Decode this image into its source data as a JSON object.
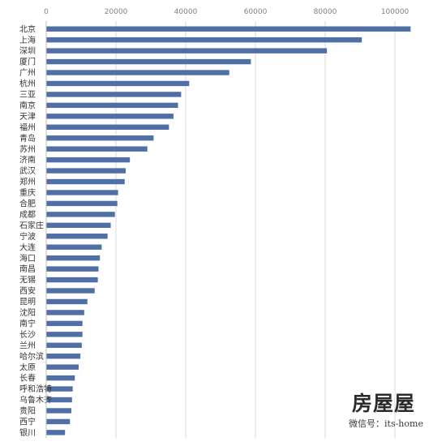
{
  "chart_data": {
    "type": "bar",
    "orientation": "horizontal",
    "title": "",
    "xlabel": "",
    "ylabel": "",
    "xlim": [
      0,
      100000
    ],
    "x_ticks": [
      "0",
      "20000",
      "40000",
      "60000",
      "80000",
      "100000"
    ],
    "grid": true,
    "bar_color": "#4f6fa5",
    "categories": [
      "北京",
      "上海",
      "深圳",
      "厦门",
      "广州",
      "杭州",
      "三亚",
      "南京",
      "天津",
      "福州",
      "青岛",
      "苏州",
      "济南",
      "武汉",
      "郑州",
      "重庆",
      "合肥",
      "成都",
      "石家庄",
      "宁波",
      "大连",
      "海口",
      "南昌",
      "无锡",
      "西安",
      "昆明",
      "沈阳",
      "南宁",
      "长沙",
      "兰州",
      "哈尔滨",
      "太原",
      "长春",
      "呼和浩特",
      "乌鲁木齐",
      "贵阳",
      "西宁",
      "银川"
    ],
    "values": [
      104500,
      90500,
      80500,
      58700,
      52500,
      41000,
      38700,
      37800,
      36500,
      35200,
      30800,
      29000,
      24000,
      22800,
      22500,
      20600,
      20400,
      19700,
      18500,
      17600,
      15900,
      15400,
      15000,
      14800,
      13900,
      11800,
      10900,
      10400,
      10400,
      10200,
      9800,
      9300,
      8200,
      7600,
      7400,
      7200,
      6800,
      5400
    ]
  },
  "watermark": {
    "brand": "房屋屋",
    "wechat": "微信号：its-home"
  }
}
